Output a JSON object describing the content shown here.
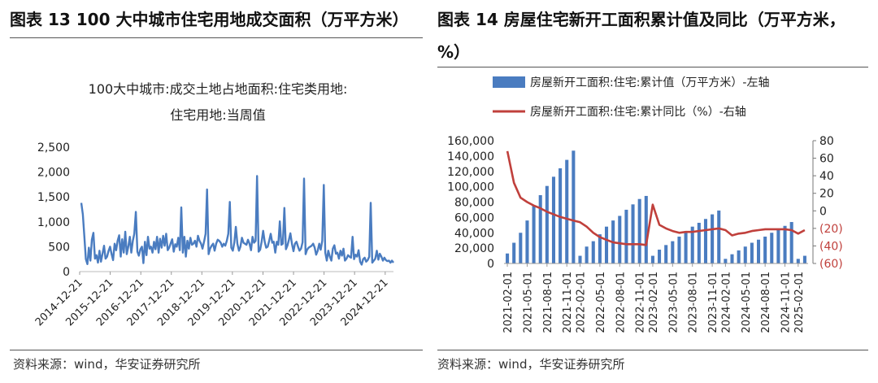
{
  "left": {
    "figure_title": "图表 13 100 大中城市住宅用地成交面积（万平方米）",
    "source": "资料来源：wind，华安证券研究所"
  },
  "right": {
    "figure_title": "图表  14  房屋住宅新开工面积累计值及同比（万平方米，%）",
    "source": "资料来源：wind，华安证券研究所"
  },
  "colors": {
    "bar": "#4a7cc0",
    "line": "#c0403c",
    "left_line": "#4a7cc0",
    "right_axis_neg": "#c0403c"
  },
  "chart_data": [
    {
      "type": "line",
      "title_lines": [
        "100大中城市:成交土地占地面积:住宅类用地:",
        "住宅用地:当周值"
      ],
      "ylim": [
        0,
        2500
      ],
      "yticks": [
        "0",
        "500",
        "1,000",
        "1,500",
        "2,000",
        "2,500"
      ],
      "xtick_labels": [
        "2014-12-21",
        "2015-12-21",
        "2016-12-21",
        "2017-12-21",
        "2018-12-21",
        "2019-12-21",
        "2020-12-21",
        "2021-12-21",
        "2022-12-21",
        "2023-12-21",
        "2024-12-21"
      ],
      "x_start": "2014-12-21",
      "x_end": "2025-03-30",
      "series": [
        {
          "values": [
            1380,
            1150,
            720,
            250,
            150,
            480,
            220,
            640,
            780,
            260,
            330,
            180,
            420,
            200,
            360,
            520,
            260,
            300,
            420,
            500,
            350,
            230,
            560,
            430,
            620,
            730,
            300,
            650,
            380,
            800,
            350,
            500,
            700,
            380,
            620,
            760,
            1200,
            400,
            320,
            450,
            500,
            170,
            600,
            330,
            700,
            460,
            500,
            380,
            600,
            450,
            700,
            380,
            660,
            480,
            720,
            520,
            760,
            430,
            480,
            570,
            650,
            400,
            550,
            500,
            680,
            430,
            1290,
            380,
            700,
            300,
            620,
            460,
            680,
            540,
            560,
            620,
            500,
            720,
            620,
            560,
            460,
            600,
            760,
            1650,
            350,
            460,
            520,
            560,
            420,
            560,
            640,
            620,
            580,
            500,
            560,
            520,
            620,
            760,
            1400,
            480,
            420,
            590,
            900,
            560,
            420,
            500,
            680,
            580,
            560,
            540,
            640,
            560,
            430,
            700,
            580,
            620,
            1920,
            400,
            440,
            600,
            820,
            600,
            480,
            500,
            620,
            760,
            580,
            600,
            380,
            600,
            540,
            1010,
            540,
            560,
            1280,
            450,
            520,
            640,
            770,
            560,
            410,
            560,
            600,
            500,
            420,
            460,
            590,
            1870,
            350,
            440,
            480,
            500,
            520,
            560,
            480,
            340,
            420,
            560,
            440,
            620,
            1740,
            380,
            220,
            420,
            300,
            220,
            460,
            530,
            360,
            380,
            260,
            420,
            320,
            460,
            220,
            260,
            330,
            300,
            280,
            700,
            250,
            340,
            300,
            430,
            200,
            140,
            250,
            280,
            200,
            230,
            300,
            1380,
            180,
            220,
            260,
            420,
            240,
            360,
            300,
            220,
            280,
            230,
            210,
            220,
            180,
            220,
            180
          ]
        }
      ]
    },
    {
      "type": "bar",
      "legend": [
        "房屋新开工面积:住宅:累计值（万平方米）-左轴",
        "房屋新开工面积:住宅:累计同比（%）-右轴"
      ],
      "categories": [
        "2021-02-01",
        "2021-03-01",
        "2021-04-01",
        "2021-05-01",
        "2021-06-01",
        "2021-07-01",
        "2021-08-01",
        "2021-09-01",
        "2021-10-01",
        "2021-11-01",
        "2021-12-01",
        "2022-02-01",
        "2022-03-01",
        "2022-04-01",
        "2022-05-01",
        "2022-06-01",
        "2022-07-01",
        "2022-08-01",
        "2022-09-01",
        "2022-10-01",
        "2022-11-01",
        "2022-12-01",
        "2023-02-01",
        "2023-03-01",
        "2023-04-01",
        "2023-05-01",
        "2023-06-01",
        "2023-07-01",
        "2023-08-01",
        "2023-09-01",
        "2023-10-01",
        "2023-11-01",
        "2023-12-01",
        "2024-02-01",
        "2024-03-01",
        "2024-04-01",
        "2024-05-01",
        "2024-06-01",
        "2024-07-01",
        "2024-08-01",
        "2024-09-01",
        "2024-10-01",
        "2024-11-01",
        "2024-12-01",
        "2025-02-01",
        "2025-03-01"
      ],
      "xtick_labels": [
        "2021-02-01",
        "2021-05-01",
        "2021-08-01",
        "2021-11-01",
        "2022-02-01",
        "2022-05-01",
        "2022-08-01",
        "2022-11-01",
        "2023-02-01",
        "2023-05-01",
        "2023-08-01",
        "2023-11-01",
        "2024-02-01",
        "2024-05-01",
        "2024-08-01",
        "2024-11-01",
        "2025-02-01"
      ],
      "series": [
        {
          "name": "房屋新开工面积:住宅:累计值（万平方米）-左轴",
          "axis": "left",
          "values": [
            13000,
            27000,
            40000,
            56000,
            75000,
            89000,
            101000,
            113000,
            124000,
            135000,
            147000,
            10000,
            22000,
            29000,
            38000,
            48000,
            56000,
            62000,
            70000,
            77000,
            84000,
            88000,
            10000,
            18000,
            24000,
            29000,
            35000,
            42000,
            48000,
            53000,
            58000,
            64000,
            69000,
            6000,
            12000,
            17000,
            22000,
            27000,
            31000,
            35000,
            40000,
            44000,
            49000,
            54000,
            6000,
            10000
          ]
        },
        {
          "name": "房屋新开工面积:住宅:累计同比（%）-右轴",
          "axis": "right",
          "values": [
            68,
            32,
            15,
            10,
            6,
            3,
            -1,
            -4,
            -7,
            -9,
            -11,
            -13,
            -18,
            -25,
            -30,
            -33,
            -36,
            -37,
            -38,
            -38,
            -38,
            -39,
            7,
            -16,
            -20,
            -23,
            -25,
            -24,
            -24,
            -23,
            -22,
            -21,
            -20,
            -22,
            -28,
            -26,
            -25,
            -23,
            -22,
            -21,
            -21,
            -21,
            -21,
            -22,
            -26,
            -22
          ]
        }
      ],
      "ylim_left": [
        0,
        160000
      ],
      "yticks_left": [
        "0",
        "20,000",
        "40,000",
        "60,000",
        "80,000",
        "100,000",
        "120,000",
        "140,000",
        "160,000"
      ],
      "ylim_right": [
        -60,
        80
      ],
      "yticks_right": [
        "(60)",
        "(40)",
        "(20)",
        "0",
        "20",
        "40",
        "60",
        "80"
      ]
    }
  ]
}
